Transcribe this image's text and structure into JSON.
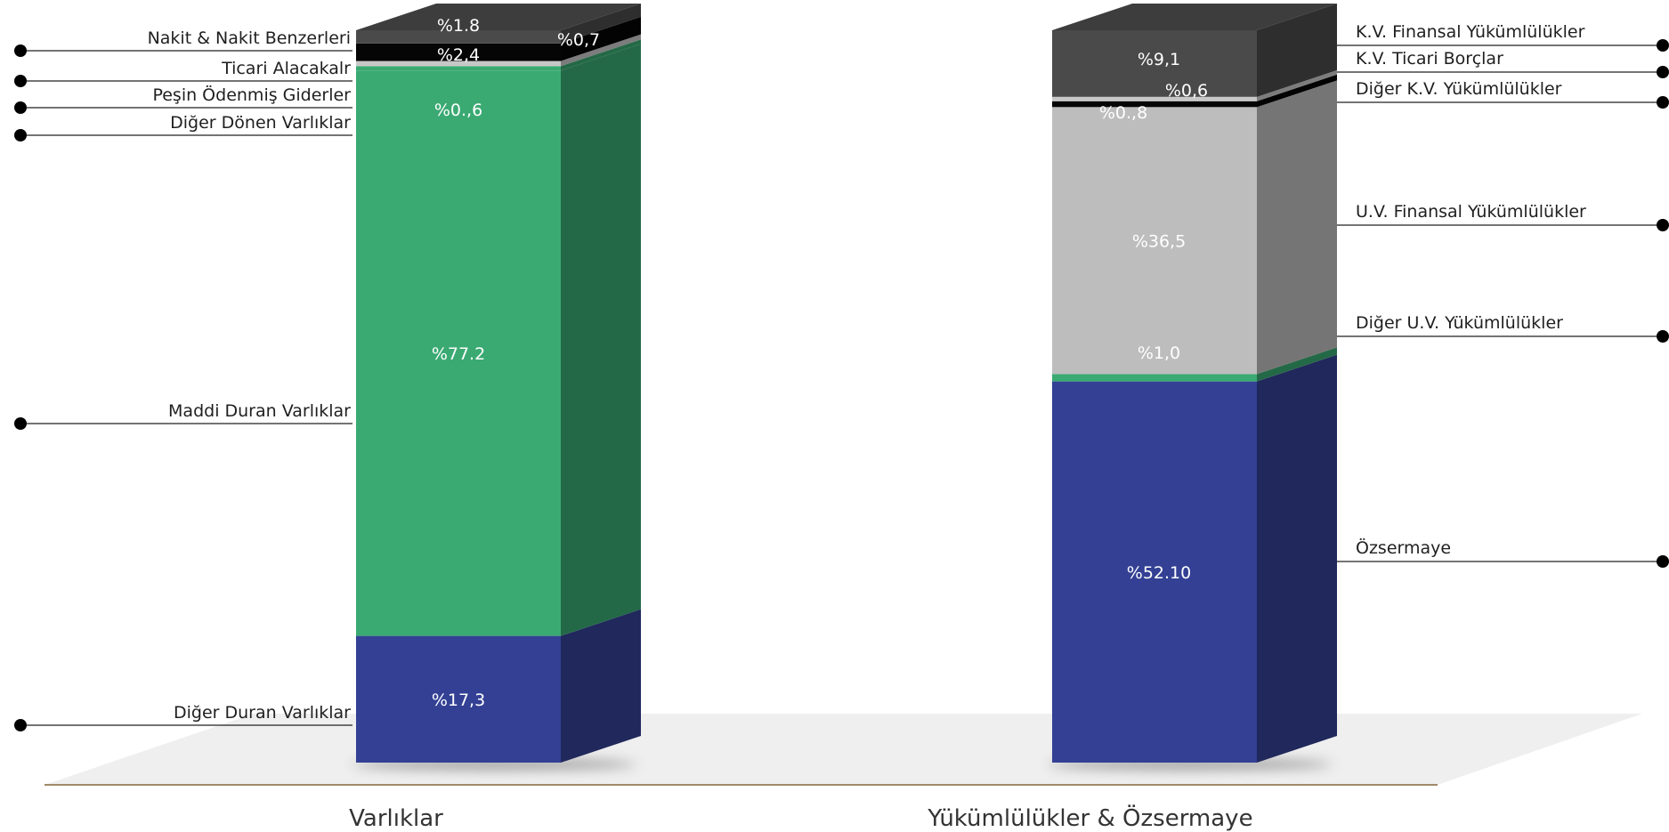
{
  "chart_data": {
    "type": "bar",
    "subtype": "stacked-3d",
    "title": "",
    "xlabel": "",
    "ylabel": "",
    "ylim": [
      0,
      100
    ],
    "grid": false,
    "legend": "callout-labels",
    "categories": [
      "Varlıklar",
      "Yükümlülükler & Özsermaye"
    ],
    "stacks": [
      {
        "category": "Varlıklar",
        "segments": [
          {
            "name": "Diğer Duran Varlıklar",
            "value": 17.3,
            "label": "%17,3",
            "color": "#334094"
          },
          {
            "name": "Maddi Duran Varlıklar",
            "value": 77.2,
            "label": "%77.2",
            "color": "#3aaa72"
          },
          {
            "name": "Diğer Dönen Varlıklar",
            "value": 0.6,
            "label": "%0.,6",
            "color": "#3aaa72"
          },
          {
            "name": "Peşin Ödenmiş Giderler",
            "value": 0.7,
            "label": "%0,7",
            "color": "#c8c8c8"
          },
          {
            "name": "Ticari Alacakalr",
            "value": 2.4,
            "label": "%2,4",
            "color": "#050505"
          },
          {
            "name": "Nakit & Nakit Benzerleri",
            "value": 1.8,
            "label": "%1.8",
            "color": "#4a4a4a"
          }
        ]
      },
      {
        "category": "Yükümlülükler & Özsermaye",
        "segments": [
          {
            "name": "Özsermaye",
            "value": 52.1,
            "label": "%52.10",
            "color": "#334094"
          },
          {
            "name": "Diğer U.V. Yükümlülükler",
            "value": 1.0,
            "label": "%1,0",
            "color": "#3aaa72"
          },
          {
            "name": "U.V. Finansal Yükümlülükler",
            "value": 36.5,
            "label": "%36,5",
            "color": "#bdbdbd"
          },
          {
            "name": "Diğer K.V. Yükümlülükler",
            "value": 0.8,
            "label": "%0.,8",
            "color": "#050505"
          },
          {
            "name": "K.V. Ticari Borçlar",
            "value": 0.6,
            "label": "%0,6",
            "color": "#c8c8c8"
          },
          {
            "name": "K.V. Finansal Yükümlülükler",
            "value": 9.1,
            "label": "%9,1",
            "color": "#4a4a4a"
          }
        ]
      }
    ]
  }
}
